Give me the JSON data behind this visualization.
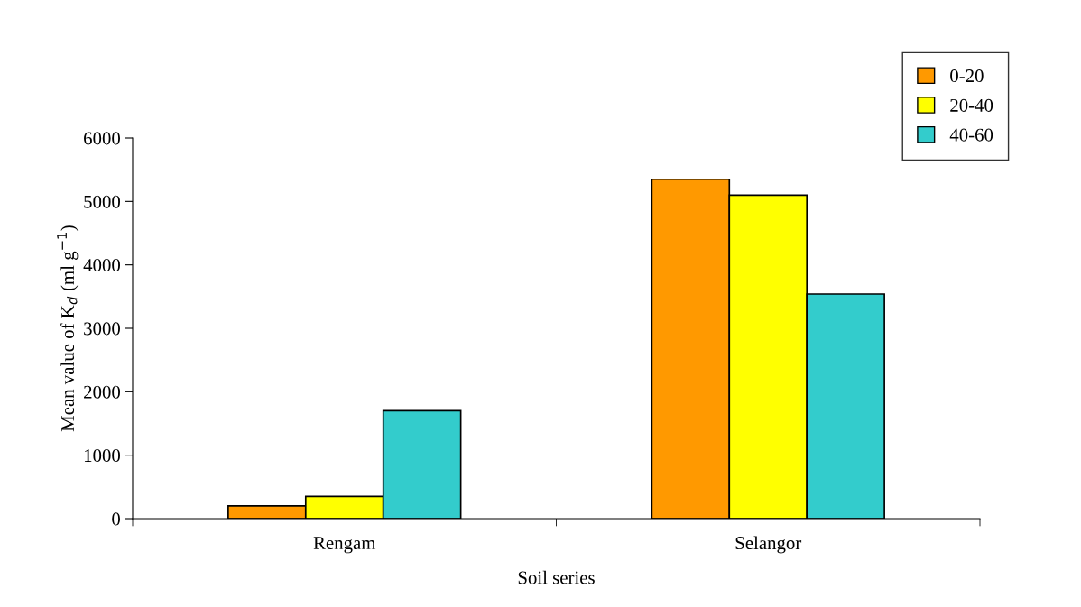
{
  "chart_data": {
    "type": "bar",
    "xlabel": "Soil series",
    "ylabel": "Mean value of K$_{d}$ (ml g$^{−1}$)",
    "categories": [
      "Rengam",
      "Selangor"
    ],
    "series": [
      {
        "name": "0-20",
        "color": "#ff9900",
        "values": [
          200,
          5350
        ]
      },
      {
        "name": "20-40",
        "color": "#ffff00",
        "values": [
          350,
          5100
        ]
      },
      {
        "name": "40-60",
        "color": "#33cccc",
        "values": [
          1700,
          3540
        ]
      }
    ],
    "ylim": [
      0,
      6000
    ],
    "yticks": [
      0,
      1000,
      2000,
      3000,
      4000,
      5000,
      6000
    ],
    "grid": false,
    "legend": "top right"
  }
}
